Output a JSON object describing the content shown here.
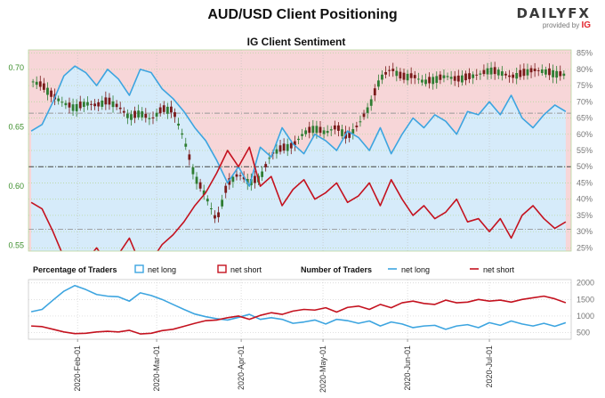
{
  "title": "AUD/USD Client Positioning",
  "logo": {
    "brand_a": "DAILY",
    "brand_b": "FX",
    "provided_by": "provided by",
    "ig": "IG"
  },
  "colors": {
    "long_line": "#3da5e0",
    "short_line": "#c4121f",
    "long_fill": "#d6ebfa",
    "short_fill": "#f7d6d8",
    "candle_up": "#2e7d32",
    "candle_down": "#7a1a1a",
    "left_axis": "#3d8f2d",
    "gray_axis": "#777777"
  },
  "chart_data": [
    {
      "type": "line",
      "title": "IG Client Sentiment",
      "left_axis": {
        "range": [
          0.545,
          0.715
        ],
        "ticks": [
          "0.55",
          "0.60",
          "0.65",
          "0.70"
        ]
      },
      "right_axis": {
        "range": [
          24,
          86
        ],
        "ticks": [
          "25%",
          "30%",
          "35%",
          "40%",
          "45%",
          "50%",
          "55%",
          "60%",
          "65%",
          "70%",
          "75%",
          "80%",
          "85%"
        ]
      },
      "reference_lines_pct": [
        50
      ],
      "reference_lines_price": [
        0.6615,
        0.5635
      ],
      "x_range_days": [
        -1,
        198
      ],
      "series": [
        {
          "key": "net_long_pct",
          "x": [
            0,
            4,
            8,
            12,
            16,
            20,
            24,
            28,
            32,
            36,
            40,
            44,
            48,
            52,
            56,
            60,
            64,
            68,
            72,
            76,
            80,
            84,
            88,
            92,
            96,
            100,
            104,
            108,
            112,
            116,
            120,
            124,
            128,
            132,
            136,
            140,
            144,
            148,
            152,
            156,
            160,
            164,
            168,
            172,
            176,
            180,
            184,
            188,
            192,
            196
          ],
          "y": [
            61,
            63,
            70,
            78,
            81,
            79,
            75,
            80,
            77,
            72,
            80,
            79,
            74,
            71,
            67,
            62,
            58,
            52,
            45,
            50,
            44,
            56,
            53,
            62,
            57,
            54,
            60,
            58,
            55,
            61,
            59,
            55,
            62,
            54,
            60,
            65,
            62,
            66,
            64,
            60,
            67,
            66,
            70,
            66,
            72,
            65,
            62,
            66,
            69,
            67
          ]
        },
        {
          "key": "net_short_pct",
          "x": [
            0,
            4,
            8,
            12,
            16,
            20,
            24,
            28,
            32,
            36,
            40,
            44,
            48,
            52,
            56,
            60,
            64,
            68,
            72,
            76,
            80,
            84,
            88,
            92,
            96,
            100,
            104,
            108,
            112,
            116,
            120,
            124,
            128,
            132,
            136,
            140,
            144,
            148,
            152,
            156,
            160,
            164,
            168,
            172,
            176,
            180,
            184,
            188,
            192,
            196
          ],
          "y": [
            39,
            37,
            30,
            22,
            19,
            21,
            25,
            20,
            23,
            28,
            20,
            21,
            26,
            29,
            33,
            38,
            42,
            48,
            55,
            50,
            56,
            44,
            47,
            38,
            43,
            46,
            40,
            42,
            45,
            39,
            41,
            45,
            38,
            46,
            40,
            35,
            38,
            34,
            36,
            40,
            33,
            34,
            30,
            34,
            28,
            35,
            38,
            34,
            31,
            33
          ]
        },
        {
          "key": "price_close",
          "x": [
            0,
            4,
            8,
            12,
            16,
            20,
            24,
            28,
            32,
            36,
            40,
            44,
            48,
            52,
            56,
            60,
            64,
            68,
            72,
            76,
            80,
            84,
            88,
            92,
            96,
            100,
            104,
            108,
            112,
            116,
            120,
            124,
            128,
            132,
            136,
            140,
            144,
            148,
            152,
            156,
            160,
            164,
            168,
            172,
            176,
            180,
            184,
            188,
            192,
            196
          ],
          "y": [
            0.689,
            0.685,
            0.676,
            0.67,
            0.666,
            0.67,
            0.668,
            0.672,
            0.667,
            0.658,
            0.662,
            0.656,
            0.665,
            0.664,
            0.64,
            0.608,
            0.592,
            0.57,
            0.602,
            0.61,
            0.603,
            0.607,
            0.627,
            0.632,
            0.634,
            0.645,
            0.649,
            0.645,
            0.65,
            0.641,
            0.652,
            0.667,
            0.691,
            0.699,
            0.692,
            0.693,
            0.688,
            0.69,
            0.693,
            0.69,
            0.692,
            0.694,
            0.698,
            0.696,
            0.692,
            0.695,
            0.698,
            0.697,
            0.695,
            0.694
          ]
        }
      ]
    },
    {
      "type": "line",
      "left_legend": {
        "title": "Percentage of Traders",
        "long": "net long",
        "short": "net short"
      },
      "right_legend": {
        "title": "Number of Traders",
        "long": "net long",
        "short": "net short"
      },
      "right_axis": {
        "range": [
          300,
          2100
        ],
        "ticks": [
          "500",
          "1000",
          "1500",
          "2000"
        ]
      },
      "x_ticks": [
        {
          "day": 17,
          "label": "2020-Feb-01"
        },
        {
          "day": 46,
          "label": "2020-Mar-01"
        },
        {
          "day": 77,
          "label": "2020-Apr-01"
        },
        {
          "day": 107,
          "label": "2020-May-01"
        },
        {
          "day": 138,
          "label": "2020-Jun-01"
        },
        {
          "day": 168,
          "label": "2020-Jul-01"
        }
      ],
      "series": [
        {
          "key": "net_long_traders",
          "x": [
            0,
            4,
            8,
            12,
            16,
            20,
            24,
            28,
            32,
            36,
            40,
            44,
            48,
            52,
            56,
            60,
            64,
            68,
            72,
            76,
            80,
            84,
            88,
            92,
            96,
            100,
            104,
            108,
            112,
            116,
            120,
            124,
            128,
            132,
            136,
            140,
            144,
            148,
            152,
            156,
            160,
            164,
            168,
            172,
            176,
            180,
            184,
            188,
            192,
            196
          ],
          "y": [
            1130,
            1200,
            1480,
            1750,
            1920,
            1800,
            1650,
            1600,
            1580,
            1450,
            1700,
            1620,
            1500,
            1350,
            1200,
            1060,
            980,
            920,
            880,
            960,
            1050,
            900,
            950,
            900,
            780,
            820,
            880,
            760,
            900,
            860,
            780,
            850,
            700,
            820,
            760,
            650,
            700,
            720,
            600,
            700,
            740,
            650,
            800,
            720,
            850,
            760,
            700,
            780,
            690,
            800
          ]
        },
        {
          "key": "net_short_traders",
          "x": [
            0,
            4,
            8,
            12,
            16,
            20,
            24,
            28,
            32,
            36,
            40,
            44,
            48,
            52,
            56,
            60,
            64,
            68,
            72,
            76,
            80,
            84,
            88,
            92,
            96,
            100,
            104,
            108,
            112,
            116,
            120,
            124,
            128,
            132,
            136,
            140,
            144,
            148,
            152,
            156,
            160,
            164,
            168,
            172,
            176,
            180,
            184,
            188,
            192,
            196
          ],
          "y": [
            700,
            680,
            600,
            520,
            470,
            480,
            520,
            540,
            520,
            570,
            460,
            480,
            560,
            600,
            690,
            780,
            860,
            880,
            950,
            1000,
            900,
            1020,
            1100,
            1050,
            1150,
            1200,
            1180,
            1250,
            1120,
            1260,
            1300,
            1200,
            1350,
            1250,
            1400,
            1450,
            1380,
            1350,
            1480,
            1400,
            1420,
            1500,
            1450,
            1480,
            1420,
            1500,
            1550,
            1600,
            1520,
            1400
          ]
        }
      ]
    }
  ]
}
